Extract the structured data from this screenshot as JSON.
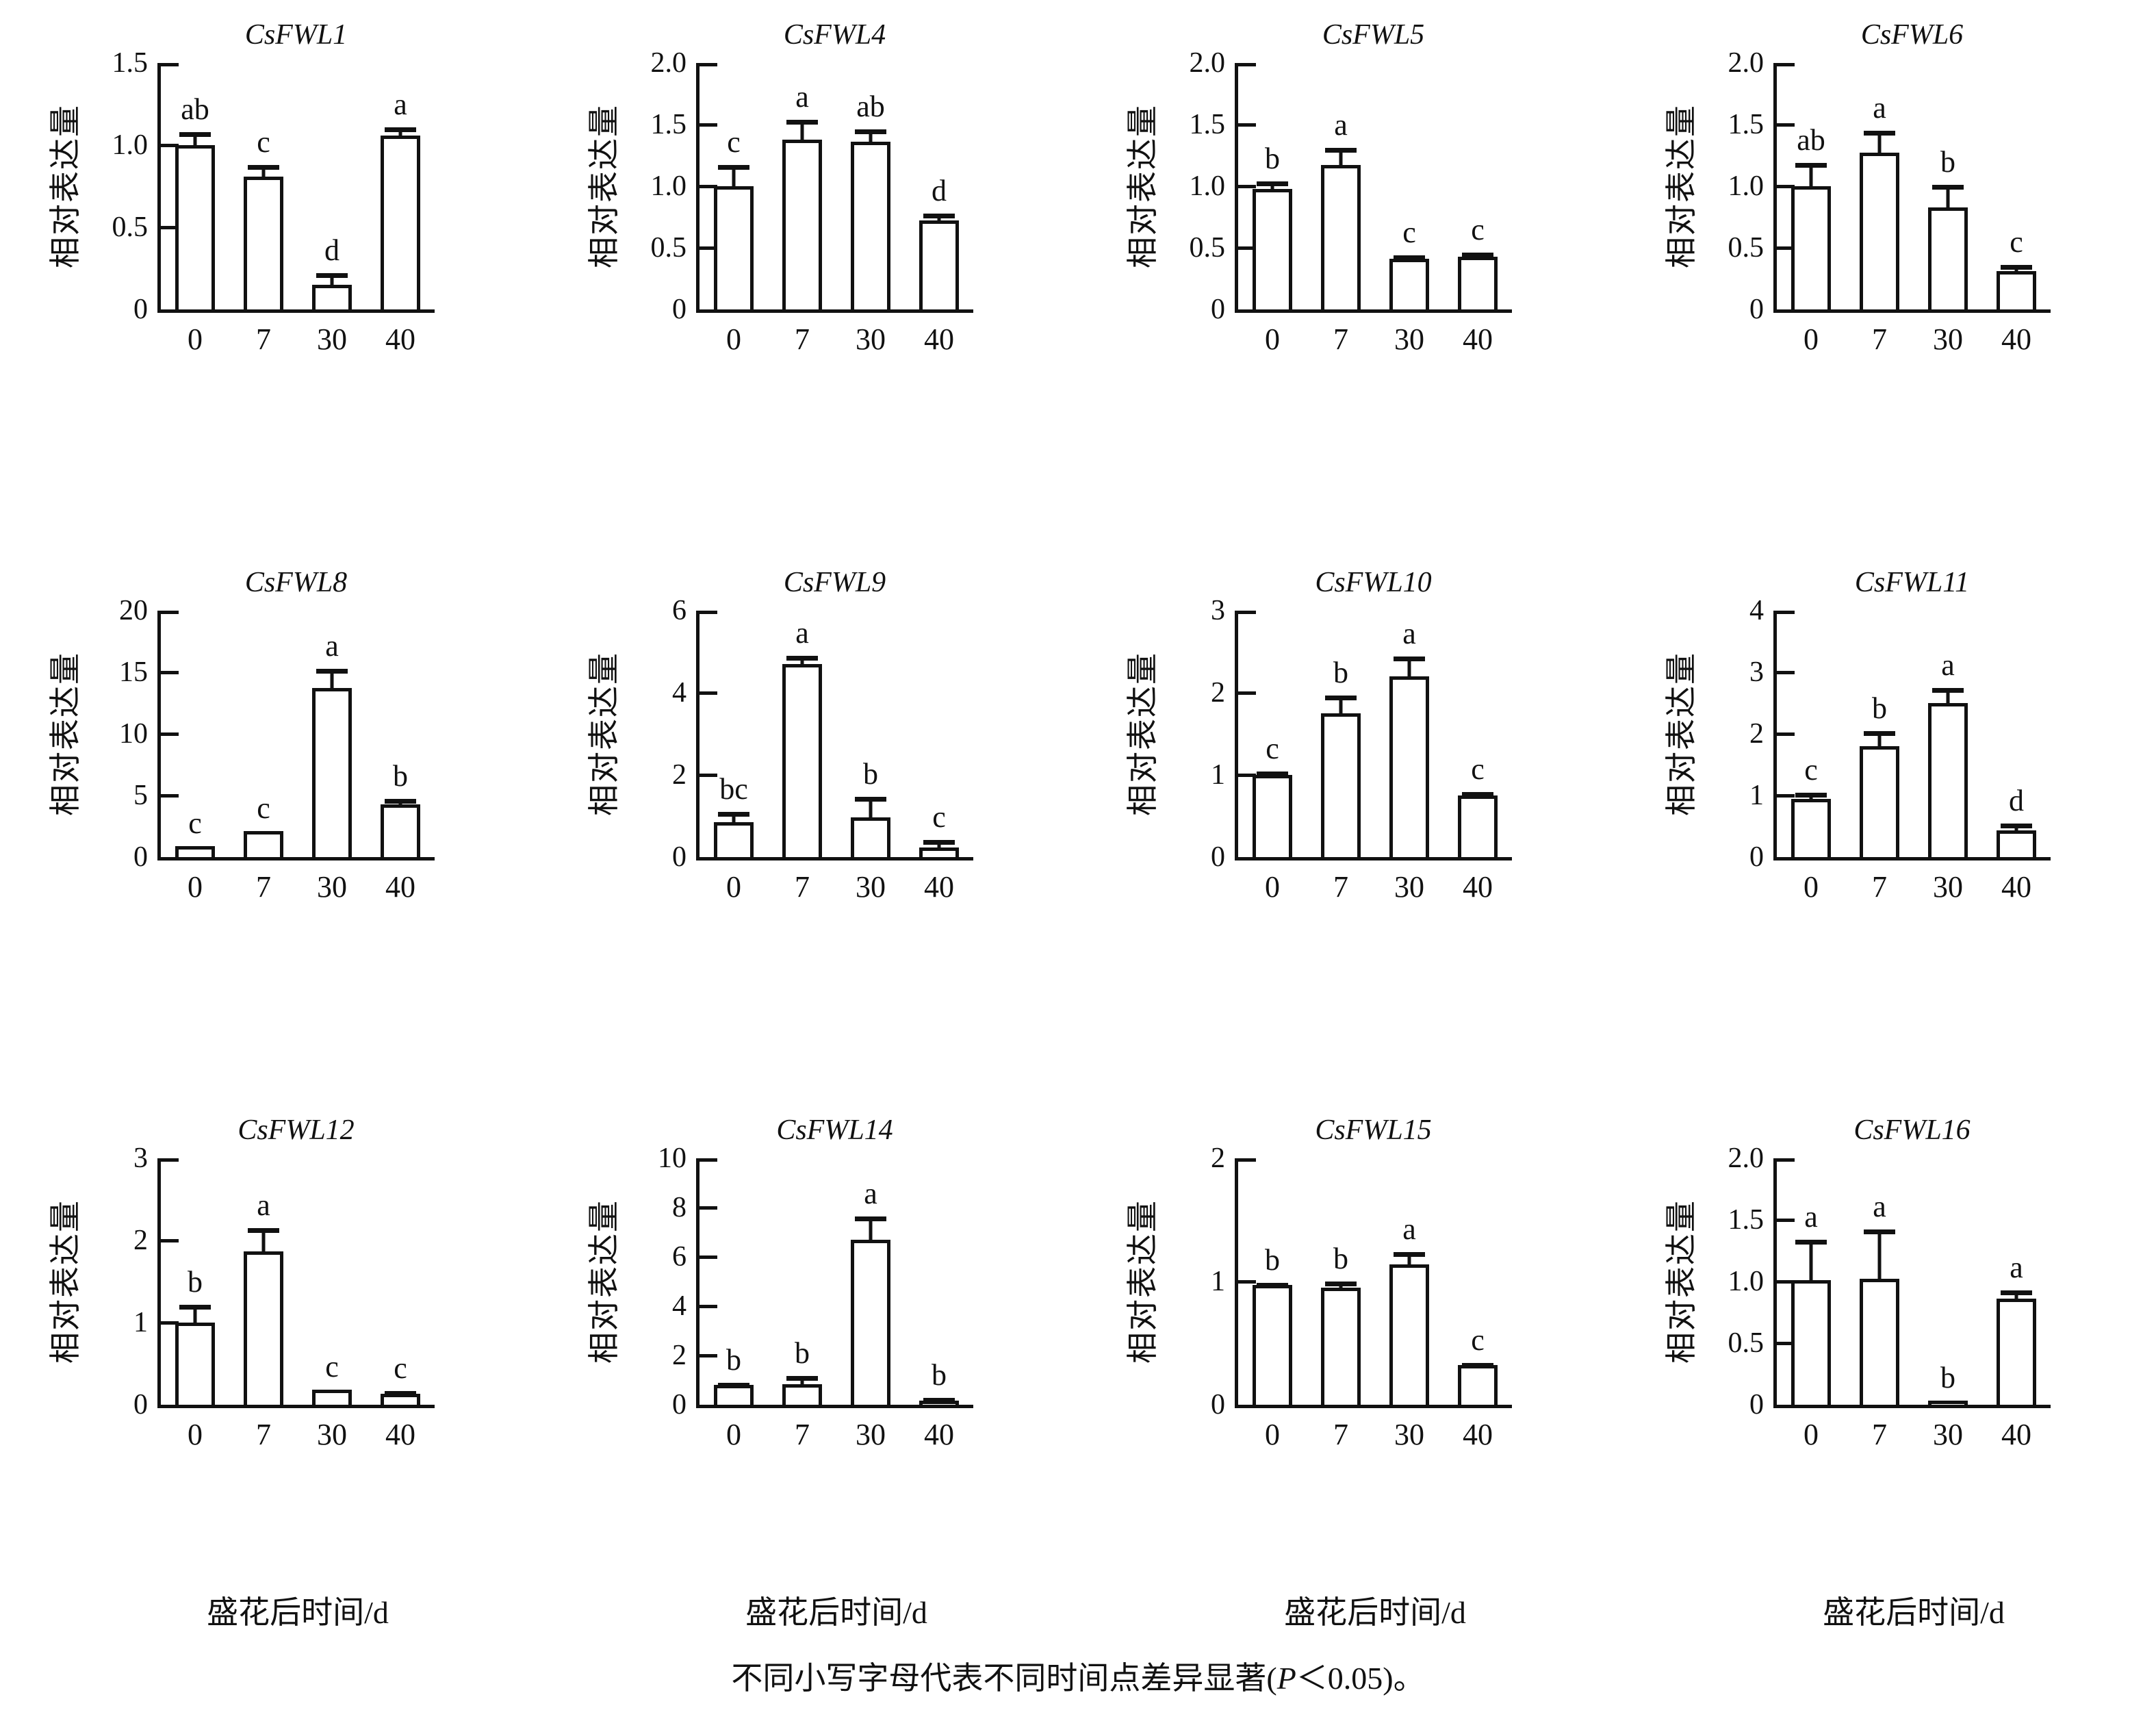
{
  "caption": {
    "prefix": "不同小写字母代表不同时间点差异显著(",
    "p": "P",
    "suffix": "＜0.05)。"
  },
  "chart_data": [
    {
      "type": "bar",
      "title": "CsFWL1",
      "ylabel": "相对表达量",
      "xlabel": "",
      "categories": [
        "0",
        "7",
        "30",
        "40"
      ],
      "values": [
        1.0,
        0.81,
        0.15,
        1.06
      ],
      "errors": [
        0.08,
        0.07,
        0.07,
        0.05
      ],
      "letters": [
        "ab",
        "c",
        "d",
        "a"
      ],
      "ylim": [
        0,
        1.5
      ],
      "yticks": [
        0,
        0.5,
        1,
        1.5
      ],
      "ytick_labels": [
        "0",
        "0.5",
        "1.0",
        "1.5"
      ]
    },
    {
      "type": "bar",
      "title": "CsFWL4",
      "ylabel": "相对表达量",
      "xlabel": "",
      "categories": [
        "0",
        "7",
        "30",
        "40"
      ],
      "values": [
        1.0,
        1.38,
        1.36,
        0.72
      ],
      "errors": [
        0.17,
        0.16,
        0.1,
        0.06
      ],
      "letters": [
        "c",
        "a",
        "ab",
        "d"
      ],
      "ylim": [
        0,
        2.0
      ],
      "yticks": [
        0,
        0.5,
        1,
        1.5,
        2
      ],
      "ytick_labels": [
        "0",
        "0.5",
        "1.0",
        "1.5",
        "2.0"
      ]
    },
    {
      "type": "bar",
      "title": "CsFWL5",
      "ylabel": "相对表达量",
      "xlabel": "",
      "categories": [
        "0",
        "7",
        "30",
        "40"
      ],
      "values": [
        0.98,
        1.17,
        0.41,
        0.43
      ],
      "errors": [
        0.06,
        0.14,
        0.03,
        0.03
      ],
      "letters": [
        "b",
        "a",
        "c",
        "c"
      ],
      "ylim": [
        0,
        2.0
      ],
      "yticks": [
        0,
        0.5,
        1,
        1.5,
        2
      ],
      "ytick_labels": [
        "0",
        "0.5",
        "1.0",
        "1.5",
        "2.0"
      ]
    },
    {
      "type": "bar",
      "title": "CsFWL6",
      "ylabel": "相对表达量",
      "xlabel": "",
      "categories": [
        "0",
        "7",
        "30",
        "40"
      ],
      "values": [
        1.0,
        1.27,
        0.83,
        0.31
      ],
      "errors": [
        0.19,
        0.18,
        0.18,
        0.05
      ],
      "letters": [
        "ab",
        "a",
        "b",
        "c"
      ],
      "ylim": [
        0,
        2.0
      ],
      "yticks": [
        0,
        0.5,
        1,
        1.5,
        2
      ],
      "ytick_labels": [
        "0",
        "0.5",
        "1.0",
        "1.5",
        "2.0"
      ]
    },
    {
      "type": "bar",
      "title": "CsFWL8",
      "ylabel": "相对表达量",
      "xlabel": "",
      "categories": [
        "0",
        "7",
        "30",
        "40"
      ],
      "values": [
        0.9,
        2.1,
        13.7,
        4.3
      ],
      "errors": [
        0.12,
        0.15,
        1.6,
        0.45
      ],
      "letters": [
        "c",
        "c",
        "a",
        "b"
      ],
      "ylim": [
        0,
        20
      ],
      "yticks": [
        0,
        5,
        10,
        15,
        20
      ],
      "ytick_labels": [
        "0",
        "5",
        "10",
        "15",
        "20"
      ]
    },
    {
      "type": "bar",
      "title": "CsFWL9",
      "ylabel": "相对表达量",
      "xlabel": "",
      "categories": [
        "0",
        "7",
        "30",
        "40"
      ],
      "values": [
        0.85,
        4.7,
        0.97,
        0.24
      ],
      "errors": [
        0.25,
        0.2,
        0.5,
        0.17
      ],
      "letters": [
        "bc",
        "a",
        "b",
        "c"
      ],
      "ylim": [
        0,
        6
      ],
      "yticks": [
        0,
        2,
        4,
        6
      ],
      "ytick_labels": [
        "0",
        "2",
        "4",
        "6"
      ]
    },
    {
      "type": "bar",
      "title": "CsFWL10",
      "ylabel": "相对表达量",
      "xlabel": "",
      "categories": [
        "0",
        "7",
        "30",
        "40"
      ],
      "values": [
        1.0,
        1.75,
        2.2,
        0.75
      ],
      "errors": [
        0.04,
        0.22,
        0.24,
        0.04
      ],
      "letters": [
        "c",
        "b",
        "a",
        "c"
      ],
      "ylim": [
        0,
        3
      ],
      "yticks": [
        0,
        1,
        2,
        3
      ],
      "ytick_labels": [
        "0",
        "1",
        "2",
        "3"
      ]
    },
    {
      "type": "bar",
      "title": "CsFWL11",
      "ylabel": "相对表达量",
      "xlabel": "",
      "categories": [
        "0",
        "7",
        "30",
        "40"
      ],
      "values": [
        0.95,
        1.8,
        2.5,
        0.43
      ],
      "errors": [
        0.1,
        0.25,
        0.24,
        0.12
      ],
      "letters": [
        "c",
        "b",
        "a",
        "d"
      ],
      "ylim": [
        0,
        4
      ],
      "yticks": [
        0,
        1,
        2,
        3,
        4
      ],
      "ytick_labels": [
        "0",
        "1",
        "2",
        "3",
        "4"
      ]
    },
    {
      "type": "bar",
      "title": "CsFWL12",
      "ylabel": "相对表达量",
      "xlabel": "盛花后时间/d",
      "categories": [
        "0",
        "7",
        "30",
        "40"
      ],
      "values": [
        1.0,
        1.87,
        0.18,
        0.13
      ],
      "errors": [
        0.22,
        0.28,
        0.02,
        0.04
      ],
      "letters": [
        "b",
        "a",
        "c",
        "c"
      ],
      "ylim": [
        0,
        3
      ],
      "yticks": [
        0,
        1,
        2,
        3
      ],
      "ytick_labels": [
        "0",
        "1",
        "2",
        "3"
      ]
    },
    {
      "type": "bar",
      "title": "CsFWL14",
      "ylabel": "相对表达量",
      "xlabel": "盛花后时间/d",
      "categories": [
        "0",
        "7",
        "30",
        "40"
      ],
      "values": [
        0.8,
        0.82,
        6.7,
        0.18
      ],
      "errors": [
        0.1,
        0.35,
        0.95,
        0.1
      ],
      "letters": [
        "b",
        "b",
        "a",
        "b"
      ],
      "ylim": [
        0,
        10
      ],
      "yticks": [
        0,
        2,
        4,
        6,
        8,
        10
      ],
      "ytick_labels": [
        "0",
        "2",
        "4",
        "6",
        "8",
        "10"
      ]
    },
    {
      "type": "bar",
      "title": "CsFWL15",
      "ylabel": "相对表达量",
      "xlabel": "盛花后时间/d",
      "categories": [
        "0",
        "7",
        "30",
        "40"
      ],
      "values": [
        0.97,
        0.95,
        1.14,
        0.32
      ],
      "errors": [
        0.02,
        0.05,
        0.1,
        0.02
      ],
      "letters": [
        "b",
        "b",
        "a",
        "c"
      ],
      "ylim": [
        0,
        2
      ],
      "yticks": [
        0,
        1,
        2
      ],
      "ytick_labels": [
        "0",
        "1",
        "2"
      ]
    },
    {
      "type": "bar",
      "title": "CsFWL16",
      "ylabel": "相对表达量",
      "xlabel": "盛花后时间/d",
      "categories": [
        "0",
        "7",
        "30",
        "40"
      ],
      "values": [
        1.01,
        1.02,
        0.02,
        0.86
      ],
      "errors": [
        0.33,
        0.4,
        0,
        0.07
      ],
      "letters": [
        "a",
        "a",
        "b",
        "a"
      ],
      "ylim": [
        0,
        2.0
      ],
      "yticks": [
        0,
        0.5,
        1,
        1.5,
        2
      ],
      "ytick_labels": [
        "0",
        "0.5",
        "1.0",
        "1.5",
        "2.0"
      ]
    }
  ]
}
